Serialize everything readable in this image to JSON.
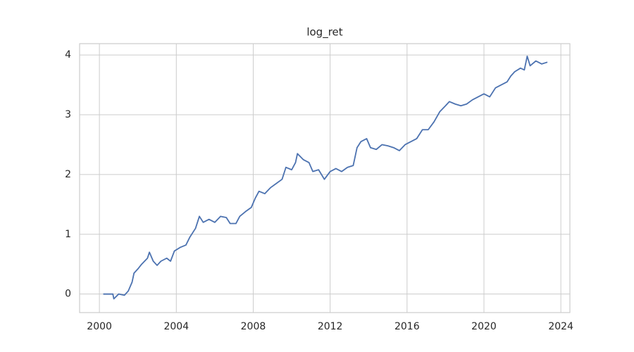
{
  "chart_data": {
    "type": "line",
    "title": "log_ret",
    "x": [
      2000.2,
      2000.5,
      2000.7,
      2000.75,
      2001.0,
      2001.3,
      2001.5,
      2001.7,
      2001.8,
      2002.0,
      2002.2,
      2002.5,
      2002.6,
      2002.8,
      2003.0,
      2003.2,
      2003.5,
      2003.7,
      2003.9,
      2004.2,
      2004.5,
      2004.7,
      2005.0,
      2005.2,
      2005.4,
      2005.7,
      2006.0,
      2006.3,
      2006.6,
      2006.8,
      2007.1,
      2007.3,
      2007.6,
      2007.9,
      2008.1,
      2008.3,
      2008.6,
      2008.9,
      2009.2,
      2009.5,
      2009.7,
      2010.0,
      2010.2,
      2010.3,
      2010.6,
      2010.9,
      2011.1,
      2011.4,
      2011.7,
      2012.0,
      2012.3,
      2012.6,
      2012.9,
      2013.2,
      2013.4,
      2013.6,
      2013.9,
      2014.1,
      2014.4,
      2014.7,
      2015.0,
      2015.3,
      2015.6,
      2015.9,
      2016.2,
      2016.5,
      2016.8,
      2017.1,
      2017.4,
      2017.7,
      2018.0,
      2018.2,
      2018.5,
      2018.8,
      2019.1,
      2019.4,
      2019.7,
      2020.0,
      2020.3,
      2020.6,
      2020.9,
      2021.2,
      2021.4,
      2021.6,
      2021.9,
      2022.1,
      2022.25,
      2022.4,
      2022.7,
      2023.0,
      2023.3
    ],
    "series": [
      {
        "name": "log_ret",
        "color": "#4c72b0",
        "values": [
          0,
          0,
          0,
          -0.08,
          0.0,
          -0.02,
          0.05,
          0.2,
          0.35,
          0.42,
          0.5,
          0.6,
          0.7,
          0.55,
          0.48,
          0.55,
          0.6,
          0.55,
          0.72,
          0.78,
          0.82,
          0.95,
          1.1,
          1.3,
          1.2,
          1.25,
          1.2,
          1.3,
          1.28,
          1.18,
          1.18,
          1.3,
          1.38,
          1.45,
          1.6,
          1.72,
          1.68,
          1.78,
          1.85,
          1.92,
          2.12,
          2.08,
          2.2,
          2.35,
          2.25,
          2.2,
          2.05,
          2.08,
          1.92,
          2.05,
          2.1,
          2.05,
          2.12,
          2.15,
          2.45,
          2.55,
          2.6,
          2.45,
          2.42,
          2.5,
          2.48,
          2.45,
          2.4,
          2.5,
          2.55,
          2.6,
          2.75,
          2.75,
          2.88,
          3.05,
          3.15,
          3.22,
          3.18,
          3.15,
          3.18,
          3.25,
          3.3,
          3.35,
          3.3,
          3.45,
          3.5,
          3.55,
          3.65,
          3.72,
          3.78,
          3.75,
          3.98,
          3.82,
          3.9,
          3.85,
          3.88
        ]
      }
    ],
    "xlim": [
      1998.97,
      2024.47
    ],
    "xticks": [
      2000,
      2004,
      2008,
      2012,
      2016,
      2020,
      2024
    ],
    "ylim": [
      -0.31,
      4.19
    ],
    "yticks": [
      0,
      1,
      2,
      3,
      4
    ],
    "grid": true
  }
}
